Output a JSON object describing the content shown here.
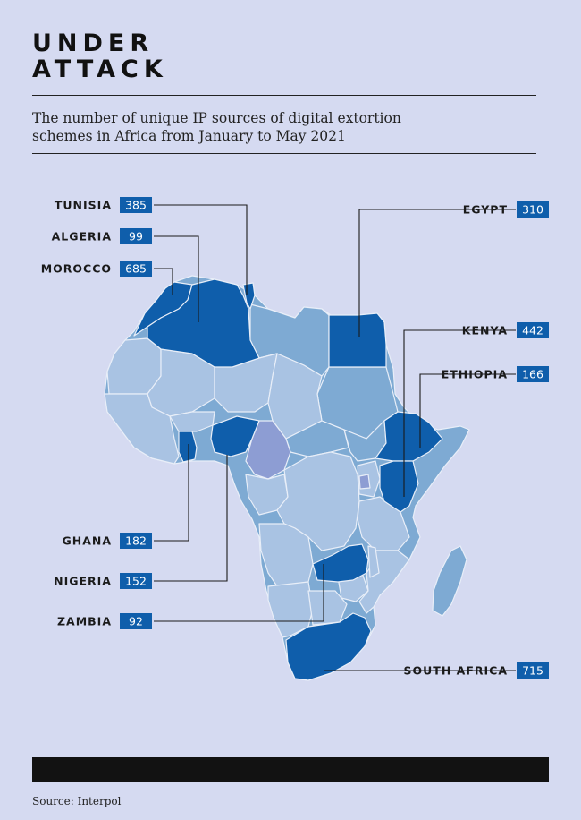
{
  "header": {
    "title_line1": "UNDER",
    "title_line2": "ATTACK",
    "subtitle_line1": "The number of unique IP sources of digital extortion",
    "subtitle_line2": "schemes in Africa from January to May 2021"
  },
  "footer": {
    "source": "Source: Interpol"
  },
  "colors": {
    "background": "#d5daf1",
    "highlight": "#0f5eab",
    "land": "#7eaad3",
    "land_alt": "#a9c3e3",
    "lavender": "#8d9dd3",
    "border": "#e8eef8",
    "label_box": "#0f5eab"
  },
  "map_data": {
    "region": "Africa",
    "countries": [
      {
        "name": "TUNISIA",
        "value": 385
      },
      {
        "name": "ALGERIA",
        "value": 99
      },
      {
        "name": "MOROCCO",
        "value": 685
      },
      {
        "name": "EGYPT",
        "value": 310
      },
      {
        "name": "KENYA",
        "value": 442
      },
      {
        "name": "ETHIOPIA",
        "value": 166
      },
      {
        "name": "GHANA",
        "value": 182
      },
      {
        "name": "NIGERIA",
        "value": 152
      },
      {
        "name": "ZAMBIA",
        "value": 92
      },
      {
        "name": "SOUTH AFRICA",
        "value": 715
      }
    ]
  }
}
